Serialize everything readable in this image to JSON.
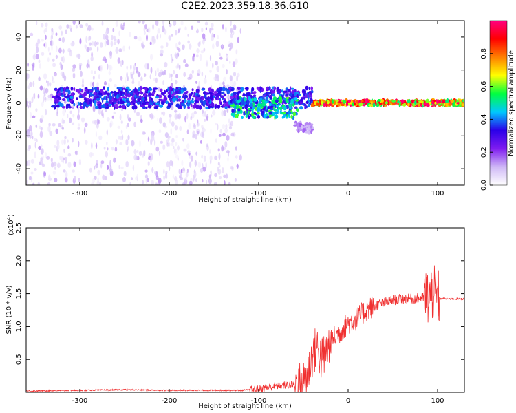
{
  "figure": {
    "title": "C2E2.2023.359.18.36.G10"
  },
  "chart_data": [
    {
      "type": "heatmap",
      "xlabel": "Height of straight line (km)",
      "ylabel": "Frequency (Hz)",
      "xlim": [
        -360,
        130
      ],
      "ylim": [
        -50,
        50
      ],
      "xticks": [
        -300,
        -200,
        -100,
        0,
        100
      ],
      "yticks": [
        -40,
        -20,
        0,
        20,
        40
      ],
      "colorbar": {
        "label": "Normalized spectral amplitude",
        "range": [
          0.0,
          1.0
        ],
        "ticks": [
          0.0,
          0.2,
          0.4,
          0.6,
          0.8
        ],
        "tick_labels": [
          "0.0",
          "0.2",
          "0.4",
          "0.6",
          "0.8"
        ],
        "colormap": [
          "#ffffff",
          "#cfb8f6",
          "#7f1cf0",
          "#2a00e8",
          "#00c8ff",
          "#00ff40",
          "#ffff00",
          "#ff8000",
          "#ff0000",
          "#ff0080"
        ]
      },
      "regions": [
        {
          "x_range": [
            -360,
            -120
          ],
          "description_level": "scattered",
          "freq_spread": [
            -50,
            50
          ],
          "amplitude": 0.1
        },
        {
          "x_range": [
            -330,
            -40
          ],
          "freq_center": 3,
          "freq_halfwidth": 6,
          "amplitude": 0.35
        },
        {
          "x_range": [
            -130,
            -55
          ],
          "freq_center": -3,
          "freq_halfwidth": 6,
          "amplitude": 0.5
        },
        {
          "x_range": [
            -60,
            -40
          ],
          "freq_center": -15,
          "freq_halfwidth": 3,
          "amplitude": 0.15
        },
        {
          "x_range": [
            -40,
            130
          ],
          "freq_center": 0,
          "freq_halfwidth": 1.5,
          "amplitude": 0.85
        }
      ]
    },
    {
      "type": "line",
      "xlabel": "Height of straight line (km)",
      "ylabel": "SNR (10 * v/v)",
      "y_multiplier": "(x10",
      "y_multiplier_exp": "4",
      "y_multiplier_close": ")",
      "xlim": [
        -360,
        130
      ],
      "ylim": [
        0,
        2.5
      ],
      "xticks": [
        -300,
        -200,
        -100,
        0,
        100
      ],
      "yticks": [
        0.5,
        1.0,
        1.5,
        2.0,
        2.5
      ],
      "ytick_labels": [
        "0.5",
        "1.0",
        "1.5",
        "2.0",
        "2.5"
      ],
      "color": "#f03030",
      "series": [
        {
          "x": [
            -360,
            -300,
            -250,
            -200,
            -150,
            -120,
            -100,
            -80,
            -60,
            -50,
            -45,
            -40,
            -35,
            -30,
            -25,
            -20,
            -15,
            -10,
            0,
            10,
            20,
            30,
            40,
            50,
            60,
            70,
            80,
            90,
            95,
            100,
            110,
            120,
            130
          ],
          "y": [
            0.02,
            0.03,
            0.04,
            0.03,
            0.03,
            0.03,
            0.05,
            0.1,
            0.12,
            0.15,
            0.3,
            0.55,
            0.7,
            0.5,
            0.6,
            0.75,
            0.85,
            0.9,
            1.05,
            1.12,
            1.25,
            1.32,
            1.36,
            1.4,
            1.42,
            1.42,
            1.43,
            1.45,
            1.5,
            1.43,
            1.42,
            1.42,
            1.42
          ]
        }
      ]
    }
  ]
}
